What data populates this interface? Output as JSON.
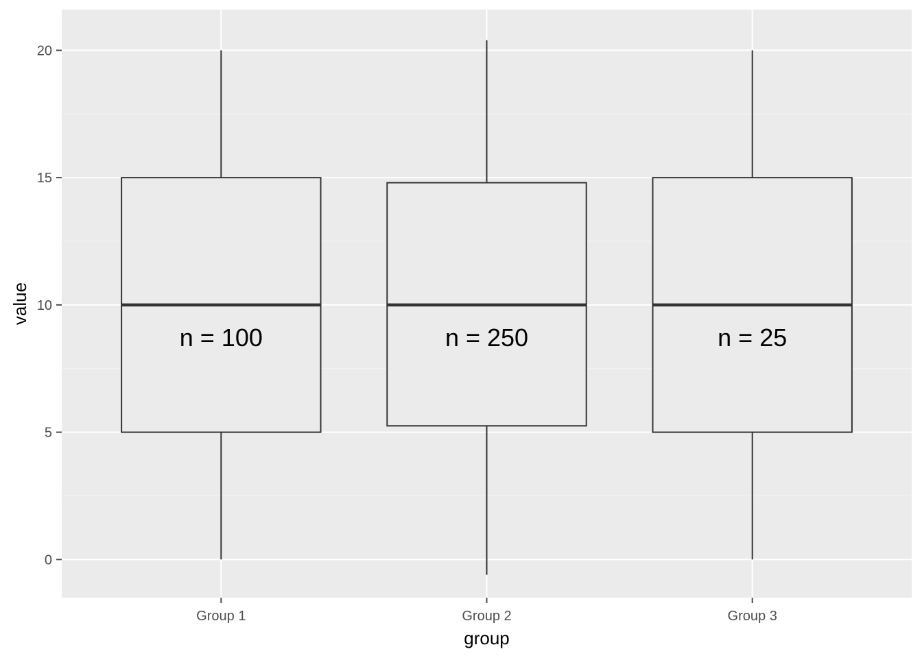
{
  "chart_data": {
    "type": "boxplot",
    "title": "",
    "xlabel": "group",
    "ylabel": "value",
    "ylim": [
      -1.5,
      21.6
    ],
    "y_ticks": [
      0,
      5,
      10,
      15,
      20
    ],
    "y_tick_labels": [
      "0",
      "5",
      "10",
      "15",
      "20"
    ],
    "categories": [
      "Group 1",
      "Group 2",
      "Group 3"
    ],
    "boxes": [
      {
        "category": "Group 1",
        "min": 0,
        "q1": 5,
        "median": 10,
        "q3": 15,
        "max": 20,
        "label": "n = 100"
      },
      {
        "category": "Group 2",
        "min": -0.6,
        "q1": 5.25,
        "median": 10,
        "q3": 14.8,
        "max": 20.4,
        "label": "n = 250"
      },
      {
        "category": "Group 3",
        "min": 0,
        "q1": 5,
        "median": 10,
        "q3": 15,
        "max": 20,
        "label": "n = 25"
      }
    ],
    "label_y": 8.7,
    "grid": true,
    "legend": "none",
    "colors": {
      "panel": "#ebebeb",
      "grid_major": "#ffffff",
      "grid_minor": "#f5f5f5",
      "box_fill": "#ebebeb",
      "box_stroke": "#333333",
      "tick": "#4d4d4d"
    }
  }
}
